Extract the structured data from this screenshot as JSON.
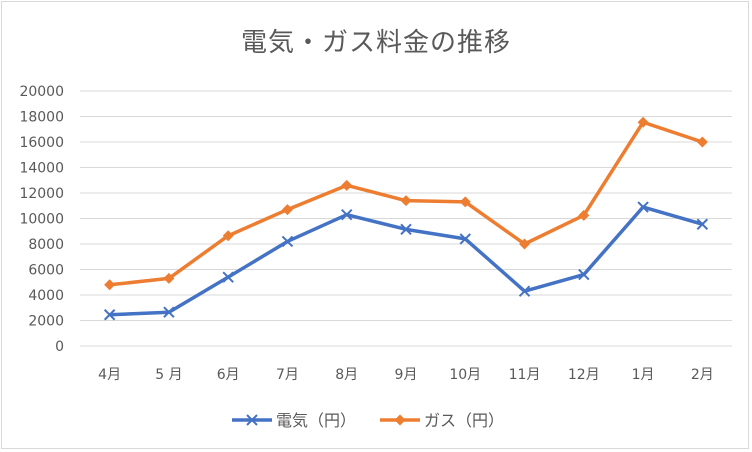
{
  "chart_data": {
    "type": "line",
    "title": "電気・ガス料金の推移",
    "xlabel": "",
    "ylabel": "",
    "categories": [
      "4月",
      "5 月",
      "6月",
      "7月",
      "8月",
      "9月",
      "10月",
      "11月",
      "12月",
      "1月",
      "2月"
    ],
    "yticks": [
      "0",
      "2000",
      "4000",
      "6000",
      "8000",
      "10000",
      "12000",
      "14000",
      "16000",
      "18000",
      "20000"
    ],
    "ylim": [
      0,
      20000
    ],
    "grid": true,
    "legend_position": "bottom",
    "series": [
      {
        "name": "電気（円）",
        "color": "#4472c4",
        "marker": "x",
        "values": [
          2450,
          2650,
          5400,
          8200,
          10300,
          9150,
          8400,
          4300,
          5600,
          10900,
          9550
        ]
      },
      {
        "name": "ガス（円）",
        "color": "#ed7d31",
        "marker": "diamond",
        "values": [
          4800,
          5300,
          8650,
          10700,
          12600,
          11400,
          11300,
          8000,
          10250,
          17550,
          16000
        ]
      }
    ]
  }
}
